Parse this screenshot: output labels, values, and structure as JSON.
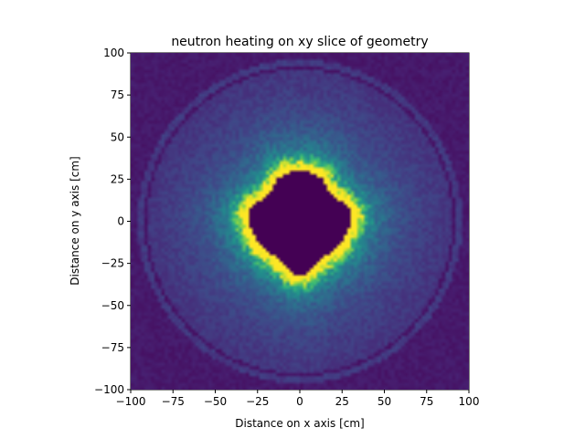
{
  "chart_data": {
    "type": "heatmap",
    "title": "neutron heating on xy slice of geometry",
    "xlabel": "Distance on x axis [cm]",
    "ylabel": "Distance on y axis [cm]",
    "xlim": [
      -100,
      100
    ],
    "ylim": [
      -100,
      100
    ],
    "xticks": [
      -100,
      -75,
      -50,
      -25,
      0,
      25,
      50,
      75,
      100
    ],
    "yticks": [
      -100,
      -75,
      -50,
      -25,
      0,
      25,
      50,
      75,
      100
    ],
    "xtick_labels": [
      "−100",
      "−75",
      "−50",
      "−25",
      "0",
      "25",
      "50",
      "75",
      "100"
    ],
    "ytick_labels": [
      "−100",
      "−75",
      "−50",
      "−25",
      "0",
      "25",
      "50",
      "75",
      "100"
    ],
    "grid": false,
    "colormap": "viridis",
    "colorbar": false,
    "features": {
      "central_void_radius": 28,
      "hot_ring_peak_radius": 31,
      "outer_emitting_radius": 90,
      "dark_gap_radius": 92,
      "thin_outer_shell_radius": 96
    }
  }
}
